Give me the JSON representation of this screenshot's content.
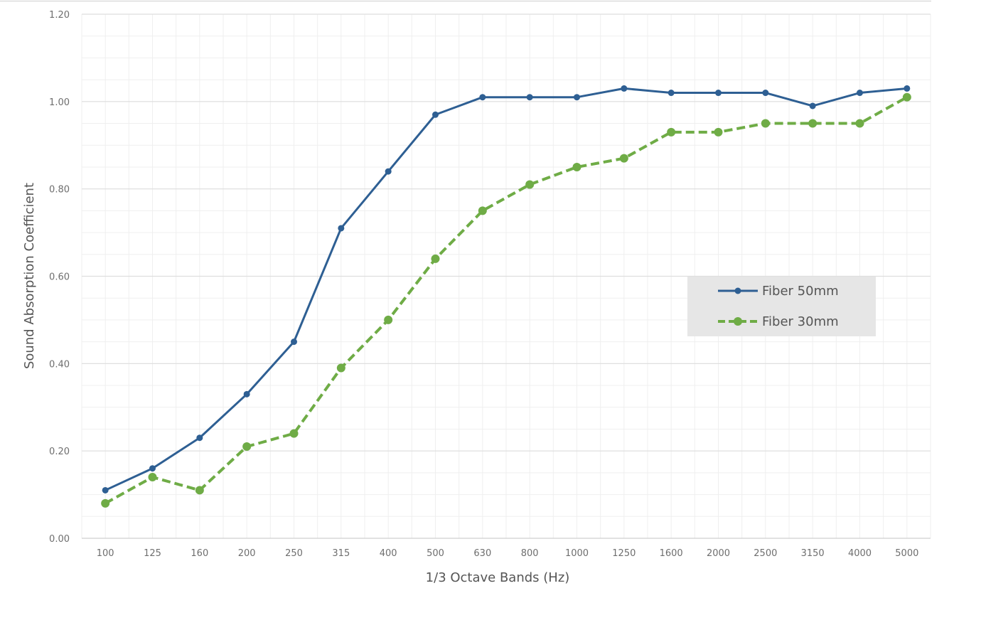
{
  "chart_data": {
    "type": "line",
    "title": "",
    "xlabel": "1/3 Octave Bands (Hz)",
    "ylabel": "Sound Absorption Coefficient",
    "categories": [
      "100",
      "125",
      "160",
      "200",
      "250",
      "315",
      "400",
      "500",
      "630",
      "800",
      "1000",
      "1250",
      "1600",
      "2000",
      "2500",
      "3150",
      "4000",
      "5000"
    ],
    "ylim": [
      0,
      1.2
    ],
    "yticks": [
      "0.00",
      "0.20",
      "0.40",
      "0.60",
      "0.80",
      "1.00",
      "1.20"
    ],
    "grid": true,
    "legend_position": "right",
    "series": [
      {
        "name": "Fiber 50mm",
        "color": "#2e5f93",
        "dash": "solid",
        "values": [
          0.11,
          0.16,
          0.23,
          0.33,
          0.45,
          0.71,
          0.84,
          0.97,
          1.01,
          1.01,
          1.01,
          1.03,
          1.02,
          1.02,
          1.02,
          0.99,
          1.02,
          1.03
        ]
      },
      {
        "name": "Fiber 30mm",
        "color": "#6fac46",
        "dash": "dashed",
        "values": [
          0.08,
          0.14,
          0.11,
          0.21,
          0.24,
          0.39,
          0.5,
          0.64,
          0.75,
          0.81,
          0.85,
          0.87,
          0.93,
          0.93,
          0.95,
          0.95,
          0.95,
          1.01
        ]
      }
    ]
  }
}
